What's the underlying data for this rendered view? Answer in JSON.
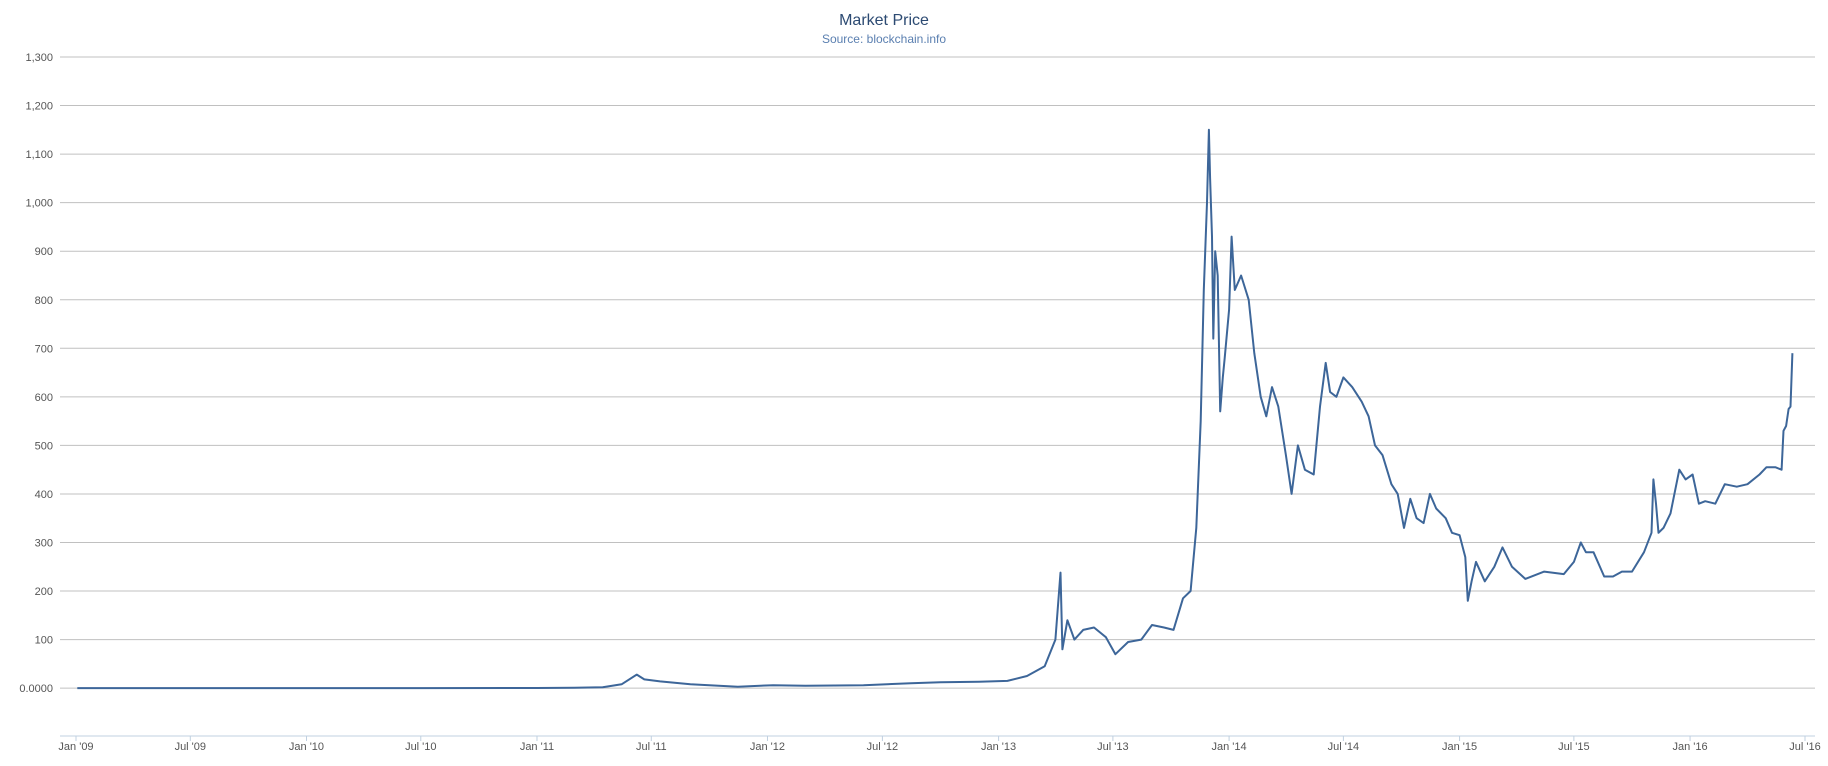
{
  "chart_data": {
    "type": "line",
    "title": "Market Price",
    "subtitle": "Source: blockchain.info",
    "xlabel": "",
    "ylabel": "",
    "ylim": [
      -100,
      1300
    ],
    "xlim": [
      "2009-01-01",
      "2016-07-01"
    ],
    "grid": true,
    "line_color": "#3d6699",
    "y_ticks": [
      {
        "value": 0,
        "label": "0.0000"
      },
      {
        "value": 100,
        "label": "100"
      },
      {
        "value": 200,
        "label": "200"
      },
      {
        "value": 300,
        "label": "300"
      },
      {
        "value": 400,
        "label": "400"
      },
      {
        "value": 500,
        "label": "500"
      },
      {
        "value": 600,
        "label": "600"
      },
      {
        "value": 700,
        "label": "700"
      },
      {
        "value": 800,
        "label": "800"
      },
      {
        "value": 900,
        "label": "900"
      },
      {
        "value": 1000,
        "label": "1,000"
      },
      {
        "value": 1100,
        "label": "1,100"
      },
      {
        "value": 1200,
        "label": "1,200"
      },
      {
        "value": 1300,
        "label": "1,300"
      }
    ],
    "x_ticks": [
      {
        "date": "2009-01-01",
        "label": "Jan '09"
      },
      {
        "date": "2009-07-01",
        "label": "Jul '09"
      },
      {
        "date": "2010-01-01",
        "label": "Jan '10"
      },
      {
        "date": "2010-07-01",
        "label": "Jul '10"
      },
      {
        "date": "2011-01-01",
        "label": "Jan '11"
      },
      {
        "date": "2011-07-01",
        "label": "Jul '11"
      },
      {
        "date": "2012-01-01",
        "label": "Jan '12"
      },
      {
        "date": "2012-07-01",
        "label": "Jul '12"
      },
      {
        "date": "2013-01-01",
        "label": "Jan '13"
      },
      {
        "date": "2013-07-01",
        "label": "Jul '13"
      },
      {
        "date": "2014-01-01",
        "label": "Jan '14"
      },
      {
        "date": "2014-07-01",
        "label": "Jul '14"
      },
      {
        "date": "2015-01-01",
        "label": "Jan '15"
      },
      {
        "date": "2015-07-01",
        "label": "Jul '15"
      },
      {
        "date": "2016-01-01",
        "label": "Jan '16"
      },
      {
        "date": "2016-07-01",
        "label": "Jul '16"
      }
    ],
    "series": [
      {
        "points": [
          [
            "2009-01-03",
            0
          ],
          [
            "2010-07-01",
            0
          ],
          [
            "2011-01-01",
            0.3
          ],
          [
            "2011-03-01",
            1
          ],
          [
            "2011-04-15",
            2
          ],
          [
            "2011-05-15",
            8
          ],
          [
            "2011-06-08",
            28
          ],
          [
            "2011-06-20",
            18
          ],
          [
            "2011-07-15",
            14
          ],
          [
            "2011-09-01",
            8
          ],
          [
            "2011-11-15",
            3
          ],
          [
            "2012-01-10",
            6
          ],
          [
            "2012-03-01",
            5
          ],
          [
            "2012-06-01",
            6
          ],
          [
            "2012-08-15",
            10
          ],
          [
            "2012-10-01",
            12
          ],
          [
            "2012-12-01",
            13
          ],
          [
            "2013-01-15",
            15
          ],
          [
            "2013-02-15",
            25
          ],
          [
            "2013-03-15",
            45
          ],
          [
            "2013-04-01",
            100
          ],
          [
            "2013-04-09",
            238
          ],
          [
            "2013-04-12",
            80
          ],
          [
            "2013-04-20",
            140
          ],
          [
            "2013-05-01",
            100
          ],
          [
            "2013-05-15",
            120
          ],
          [
            "2013-06-01",
            125
          ],
          [
            "2013-06-20",
            105
          ],
          [
            "2013-07-05",
            70
          ],
          [
            "2013-07-25",
            95
          ],
          [
            "2013-08-15",
            100
          ],
          [
            "2013-09-01",
            130
          ],
          [
            "2013-09-20",
            125
          ],
          [
            "2013-10-05",
            120
          ],
          [
            "2013-10-20",
            185
          ],
          [
            "2013-11-01",
            200
          ],
          [
            "2013-11-10",
            330
          ],
          [
            "2013-11-17",
            550
          ],
          [
            "2013-11-22",
            820
          ],
          [
            "2013-11-27",
            1000
          ],
          [
            "2013-11-30",
            1150
          ],
          [
            "2013-12-02",
            1050
          ],
          [
            "2013-12-05",
            930
          ],
          [
            "2013-12-07",
            720
          ],
          [
            "2013-12-10",
            900
          ],
          [
            "2013-12-14",
            850
          ],
          [
            "2013-12-18",
            570
          ],
          [
            "2013-12-22",
            640
          ],
          [
            "2013-12-25",
            680
          ],
          [
            "2014-01-01",
            780
          ],
          [
            "2014-01-05",
            930
          ],
          [
            "2014-01-10",
            820
          ],
          [
            "2014-01-20",
            850
          ],
          [
            "2014-02-01",
            800
          ],
          [
            "2014-02-10",
            690
          ],
          [
            "2014-02-20",
            600
          ],
          [
            "2014-03-01",
            560
          ],
          [
            "2014-03-10",
            620
          ],
          [
            "2014-03-20",
            580
          ],
          [
            "2014-04-01",
            480
          ],
          [
            "2014-04-10",
            400
          ],
          [
            "2014-04-20",
            500
          ],
          [
            "2014-05-01",
            450
          ],
          [
            "2014-05-15",
            440
          ],
          [
            "2014-05-25",
            580
          ],
          [
            "2014-06-03",
            670
          ],
          [
            "2014-06-10",
            610
          ],
          [
            "2014-06-20",
            600
          ],
          [
            "2014-07-01",
            640
          ],
          [
            "2014-07-15",
            620
          ],
          [
            "2014-07-30",
            590
          ],
          [
            "2014-08-10",
            560
          ],
          [
            "2014-08-20",
            500
          ],
          [
            "2014-09-01",
            480
          ],
          [
            "2014-09-15",
            420
          ],
          [
            "2014-09-25",
            400
          ],
          [
            "2014-10-05",
            330
          ],
          [
            "2014-10-15",
            390
          ],
          [
            "2014-10-25",
            350
          ],
          [
            "2014-11-05",
            340
          ],
          [
            "2014-11-15",
            400
          ],
          [
            "2014-11-25",
            370
          ],
          [
            "2014-12-10",
            350
          ],
          [
            "2014-12-20",
            320
          ],
          [
            "2015-01-01",
            315
          ],
          [
            "2015-01-10",
            270
          ],
          [
            "2015-01-14",
            180
          ],
          [
            "2015-01-20",
            220
          ],
          [
            "2015-01-27",
            260
          ],
          [
            "2015-02-10",
            220
          ],
          [
            "2015-02-25",
            250
          ],
          [
            "2015-03-10",
            290
          ],
          [
            "2015-03-25",
            250
          ],
          [
            "2015-04-15",
            225
          ],
          [
            "2015-05-15",
            240
          ],
          [
            "2015-06-15",
            235
          ],
          [
            "2015-07-01",
            260
          ],
          [
            "2015-07-12",
            300
          ],
          [
            "2015-07-20",
            280
          ],
          [
            "2015-08-01",
            280
          ],
          [
            "2015-08-18",
            230
          ],
          [
            "2015-09-01",
            230
          ],
          [
            "2015-09-15",
            240
          ],
          [
            "2015-10-01",
            240
          ],
          [
            "2015-10-20",
            280
          ],
          [
            "2015-11-01",
            320
          ],
          [
            "2015-11-04",
            430
          ],
          [
            "2015-11-08",
            380
          ],
          [
            "2015-11-12",
            320
          ],
          [
            "2015-11-20",
            330
          ],
          [
            "2015-12-01",
            360
          ],
          [
            "2015-12-15",
            450
          ],
          [
            "2015-12-25",
            430
          ],
          [
            "2016-01-05",
            440
          ],
          [
            "2016-01-15",
            380
          ],
          [
            "2016-01-25",
            385
          ],
          [
            "2016-02-10",
            380
          ],
          [
            "2016-02-25",
            420
          ],
          [
            "2016-03-15",
            415
          ],
          [
            "2016-04-01",
            420
          ],
          [
            "2016-04-20",
            440
          ],
          [
            "2016-05-01",
            455
          ],
          [
            "2016-05-15",
            455
          ],
          [
            "2016-05-25",
            450
          ],
          [
            "2016-05-28",
            530
          ],
          [
            "2016-06-01",
            540
          ],
          [
            "2016-06-05",
            575
          ],
          [
            "2016-06-08",
            580
          ],
          [
            "2016-06-11",
            690
          ]
        ]
      }
    ]
  }
}
